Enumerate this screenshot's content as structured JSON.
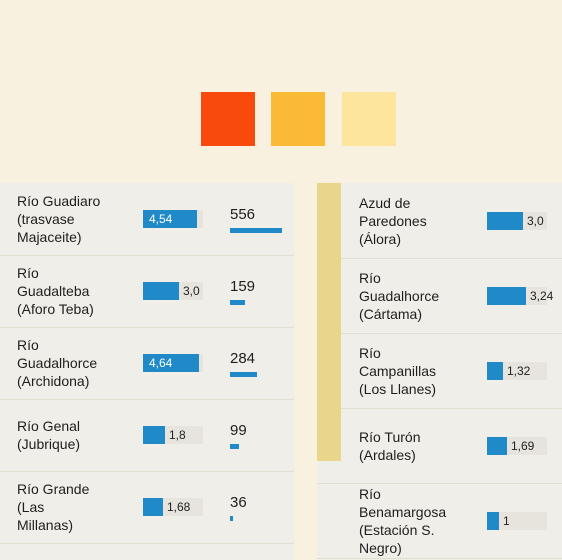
{
  "colors": {
    "background": "#f8f1df",
    "panel": "#f0eee8",
    "bar": "#1f8ac7",
    "strip": "#e9d68a"
  },
  "legend": {
    "swatches": [
      {
        "color": "#f74a0c"
      },
      {
        "color": "#fbba35"
      },
      {
        "color": "#fde59e"
      }
    ]
  },
  "chart_data": [
    {
      "type": "table",
      "columns": [
        "name",
        "value",
        "count"
      ],
      "rows": [
        {
          "name_lines": [
            "Río Guadiaro",
            "(trasvase",
            "Majaceite)"
          ],
          "value": 4.54,
          "value_label": "4,54",
          "count": 556
        },
        {
          "name_lines": [
            "Río",
            "Guadalteba",
            "(Aforo Teba)"
          ],
          "value": 3.0,
          "value_label": "3,0",
          "count": 159
        },
        {
          "name_lines": [
            "Río",
            "Guadalhorce",
            "(Archidona)"
          ],
          "value": 4.64,
          "value_label": "4,64",
          "count": 284
        },
        {
          "name_lines": [
            "Río Genal",
            "(Jubrique)"
          ],
          "value": 1.8,
          "value_label": "1,8",
          "count": 99
        },
        {
          "name_lines": [
            "Río Grande",
            "(Las",
            "Millanas)"
          ],
          "value": 1.68,
          "value_label": "1,68",
          "count": 36
        }
      ]
    },
    {
      "type": "table",
      "columns": [
        "name",
        "value"
      ],
      "rows": [
        {
          "name_lines": [
            "Azud de",
            "Paredones",
            "(Álora)"
          ],
          "value": 3.0,
          "value_label": "3,0"
        },
        {
          "name_lines": [
            "Río",
            "Guadalhorce",
            "(Cártama)"
          ],
          "value": 3.24,
          "value_label": "3,24"
        },
        {
          "name_lines": [
            "Río",
            "Campanillas",
            "(Los Llanes)"
          ],
          "value": 1.32,
          "value_label": "1,32"
        },
        {
          "name_lines": [
            "Río Turón",
            "(Ardales)"
          ],
          "value": 1.69,
          "value_label": "1,69"
        },
        {
          "name_lines": [
            "Río",
            "Benamargosa",
            "(Estación S.",
            "Negro)"
          ],
          "value": 1.0,
          "value_label": "1"
        }
      ]
    }
  ]
}
